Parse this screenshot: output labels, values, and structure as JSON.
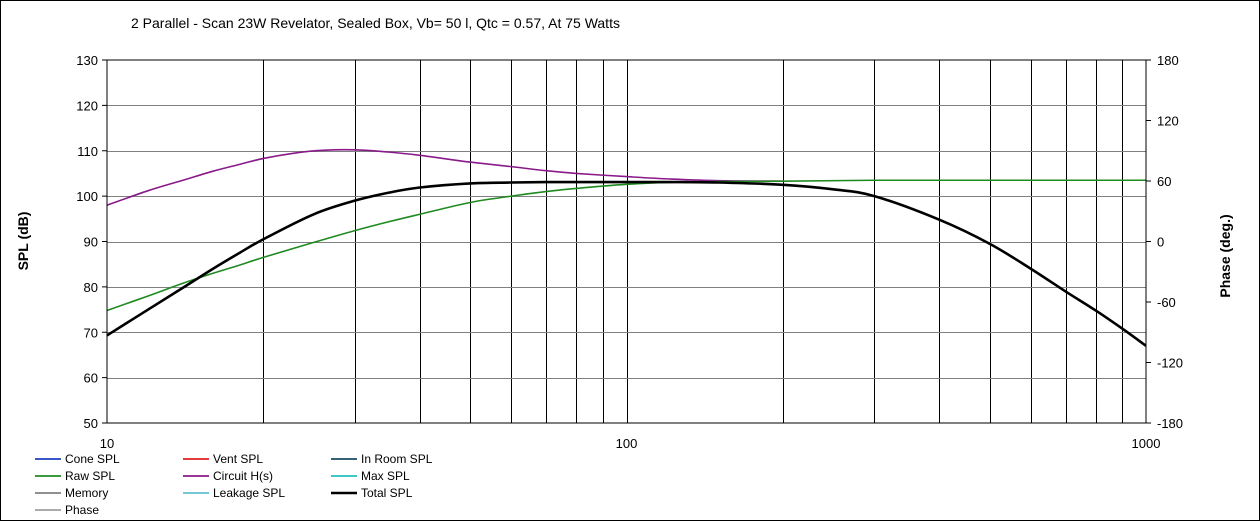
{
  "chart_data": {
    "type": "line",
    "title": "2 Parallel  - Scan 23W Revelator,  Sealed Box, Vb= 50 l,  Qtc = 0.57,  At 75 Watts",
    "xlabel": "",
    "ylabel": "SPL (dB)",
    "y2label": "Phase (deg.)",
    "xscale": "log",
    "xlim": [
      10,
      1000
    ],
    "ylim": [
      50,
      130
    ],
    "y2lim": [
      -180,
      180
    ],
    "x_ticks": [
      {
        "value": 10,
        "label": "10"
      },
      {
        "value": 100,
        "label": "100"
      },
      {
        "value": 1000,
        "label": "1000"
      }
    ],
    "x_gridlines": [
      20,
      30,
      40,
      50,
      60,
      70,
      80,
      90,
      200,
      300,
      400,
      500,
      600,
      700,
      800,
      900
    ],
    "y_ticks": [
      {
        "value": 50,
        "label": "50"
      },
      {
        "value": 60,
        "label": "60"
      },
      {
        "value": 70,
        "label": "70"
      },
      {
        "value": 80,
        "label": "80"
      },
      {
        "value": 90,
        "label": "90"
      },
      {
        "value": 100,
        "label": "100"
      },
      {
        "value": 110,
        "label": "110"
      },
      {
        "value": 120,
        "label": "120"
      },
      {
        "value": 130,
        "label": "130"
      }
    ],
    "y2_ticks": [
      {
        "value": -180,
        "label": "-180"
      },
      {
        "value": -120,
        "label": "-120"
      },
      {
        "value": -60,
        "label": "-60"
      },
      {
        "value": 0,
        "label": "0"
      },
      {
        "value": 60,
        "label": "60"
      },
      {
        "value": 120,
        "label": "120"
      },
      {
        "value": 180,
        "label": "180"
      }
    ],
    "grid": true,
    "legend_position": "bottom",
    "legend": [
      {
        "name": "Cone SPL",
        "color": "#1f3fbf"
      },
      {
        "name": "Vent SPL",
        "color": "#e02020"
      },
      {
        "name": "In Room SPL",
        "color": "#1a4a60"
      },
      {
        "name": "Raw SPL",
        "color": "#1f8a1f"
      },
      {
        "name": "Circuit H(s)",
        "color": "#8a1a8a"
      },
      {
        "name": "Max SPL",
        "color": "#20c0c0"
      },
      {
        "name": "Memory",
        "color": "#808080"
      },
      {
        "name": "Leakage SPL",
        "color": "#60c0d0"
      },
      {
        "name": "Total SPL",
        "color": "#000000"
      },
      {
        "name": "Phase",
        "color": "#a0a0a0"
      }
    ],
    "series": [
      {
        "name": "Circuit H(s)",
        "color": "#8a1a8a",
        "x": [
          10,
          12,
          14,
          16,
          18,
          20,
          23,
          26,
          30,
          35,
          40,
          45,
          50,
          60,
          70,
          80,
          100,
          120,
          150,
          200
        ],
        "values": [
          98.0,
          101.2,
          103.5,
          105.5,
          107.0,
          108.3,
          109.5,
          110.1,
          110.2,
          109.7,
          109.0,
          108.2,
          107.5,
          106.5,
          105.6,
          105.0,
          104.3,
          103.8,
          103.4,
          103.3
        ]
      },
      {
        "name": "Raw SPL",
        "color": "#1f8a1f",
        "x": [
          10,
          12,
          14,
          16,
          18,
          20,
          25,
          30,
          35,
          40,
          50,
          60,
          70,
          80,
          100,
          120,
          150,
          200,
          300,
          500,
          1000
        ],
        "values": [
          74.8,
          78.0,
          80.8,
          83.0,
          84.8,
          86.5,
          89.8,
          92.4,
          94.4,
          96.0,
          98.6,
          100.0,
          101.0,
          101.7,
          102.6,
          103.0,
          103.2,
          103.3,
          103.5,
          103.5,
          103.5
        ]
      },
      {
        "name": "Total SPL",
        "color": "#000000",
        "x": [
          10,
          12,
          14,
          16,
          18,
          20,
          25,
          30,
          35,
          40,
          50,
          60,
          70,
          80,
          100,
          120,
          150,
          200,
          250,
          300,
          400,
          500,
          600,
          700,
          800,
          900,
          1000
        ],
        "values": [
          69.3,
          75.0,
          79.8,
          84.0,
          87.5,
          90.5,
          96.0,
          99.0,
          100.8,
          101.9,
          102.8,
          103.0,
          103.1,
          103.1,
          103.1,
          103.1,
          103.0,
          102.5,
          101.5,
          100.0,
          94.8,
          89.5,
          84.0,
          79.0,
          74.8,
          70.8,
          67.0
        ]
      }
    ]
  }
}
